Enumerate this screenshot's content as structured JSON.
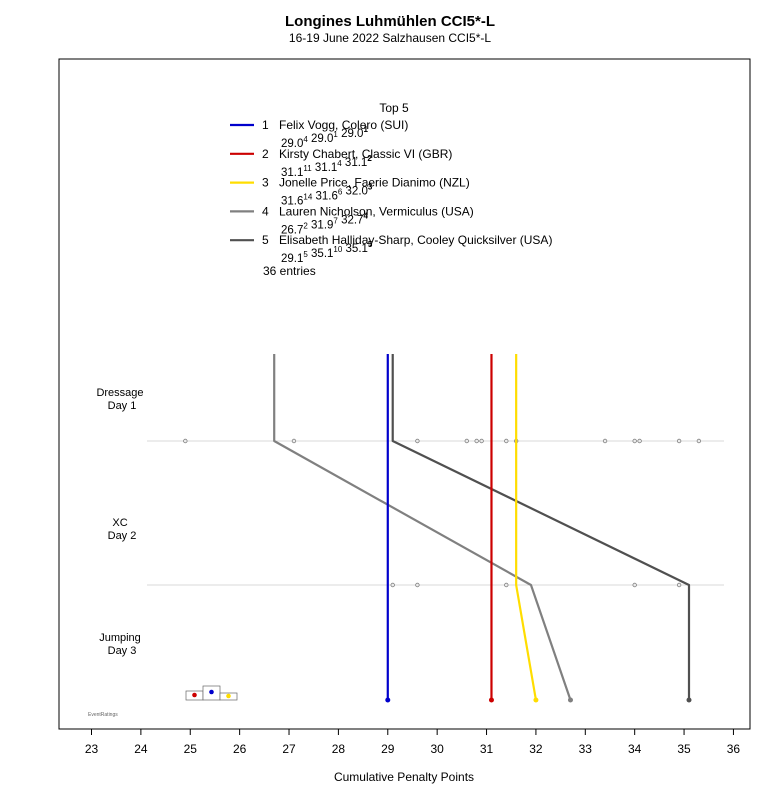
{
  "colors": {
    "series": [
      "#0000cc",
      "#cc0000",
      "#ffdd00",
      "#808080",
      "#505050"
    ],
    "gridline": "#cccccc",
    "dots": "#808080",
    "frame": "#000000"
  },
  "chart_data": {
    "type": "line",
    "title": "Longines Luhmühlen CCI5*-L",
    "subtitle": "16-19 June 2022 Salzhausen CCI5*-L",
    "xlabel": "Cumulative Penalty Points",
    "xlim": [
      22.4,
      36.3
    ],
    "xticks": [
      23,
      24,
      25,
      26,
      27,
      28,
      29,
      30,
      31,
      32,
      33,
      34,
      35,
      36
    ],
    "phases": [
      {
        "line1": "Dressage",
        "line2": "Day 1"
      },
      {
        "line1": "XC",
        "line2": "Day 2"
      },
      {
        "line1": "Jumping",
        "line2": "Day 3"
      }
    ],
    "legend_title": "Top 5",
    "legend_footer": "36 entries",
    "series": [
      {
        "rank": "1",
        "name": "Felix Vogg, Colero (SUI)",
        "values": [
          29.0,
          29.0,
          29.0
        ],
        "ranks": [
          "4",
          "1",
          "1"
        ]
      },
      {
        "rank": "2",
        "name": "Kirsty Chabert, Classic VI (GBR)",
        "values": [
          31.1,
          31.1,
          31.1
        ],
        "ranks": [
          "11",
          "4",
          "2"
        ]
      },
      {
        "rank": "3",
        "name": "Jonelle Price, Faerie Dianimo (NZL)",
        "values": [
          31.6,
          31.6,
          32.0
        ],
        "ranks": [
          "14",
          "6",
          "3"
        ]
      },
      {
        "rank": "4",
        "name": "Lauren Nicholson, Vermiculus (USA)",
        "values": [
          26.7,
          31.9,
          32.7
        ],
        "ranks": [
          "2",
          "7",
          "4"
        ]
      },
      {
        "rank": "5",
        "name": "Elisabeth Halliday-Sharp, Cooley Quicksilver (USA)",
        "values": [
          29.1,
          35.1,
          35.1
        ],
        "ranks": [
          "5",
          "10",
          "5"
        ]
      }
    ],
    "field_dressage": [
      24.9,
      27.1,
      29.6,
      30.6,
      30.8,
      30.9,
      31.4,
      31.6,
      33.4,
      34.0,
      34.1,
      34.9,
      35.3
    ],
    "field_xc": [
      29.1,
      29.6,
      31.4,
      34.0,
      34.9
    ],
    "grid": false,
    "legend_placement": "top-center"
  },
  "watermark": "EventRatings"
}
